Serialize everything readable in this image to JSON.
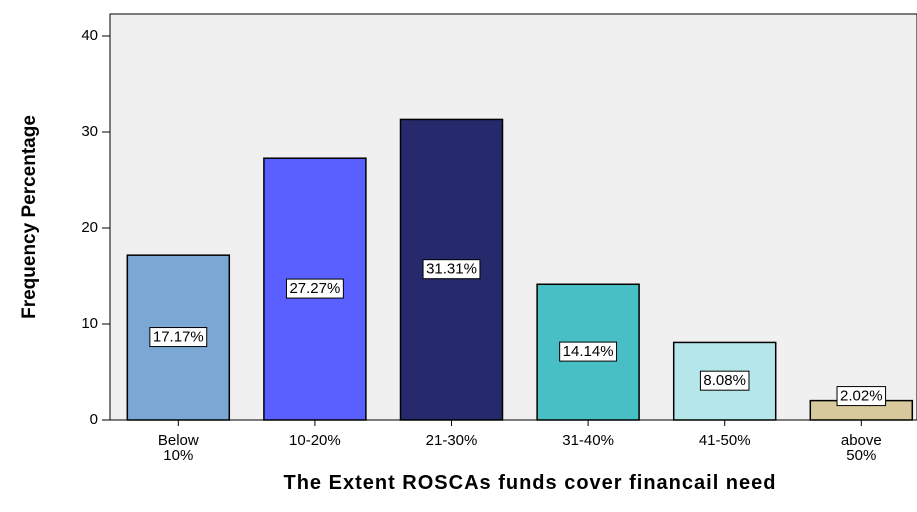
{
  "chart_data": {
    "type": "bar",
    "x_label": "The Extent ROSCAs funds cover financail need",
    "y_label": "Frequency Percentage",
    "categories": [
      "Below 10%",
      "10-20%",
      "21-30%",
      "31-40%",
      "41-50%",
      "above 50%"
    ],
    "values": [
      17.17,
      27.27,
      31.31,
      14.14,
      8.08,
      2.02
    ],
    "value_labels": [
      "17.17%",
      "27.27%",
      "31.31%",
      "14.14%",
      "8.08%",
      "2.02%"
    ],
    "colors": [
      "#7ba7d4",
      "#5a5fff",
      "#26296b",
      "#48bfc4",
      "#b5e7ea",
      "#d8c99c"
    ],
    "ylim": [
      0,
      40
    ],
    "yticks": [
      0,
      10,
      20,
      30,
      40
    ],
    "grid": false
  }
}
